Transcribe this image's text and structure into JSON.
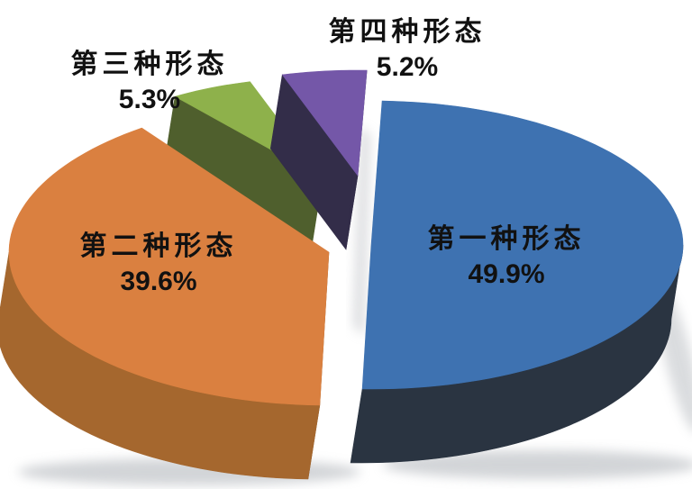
{
  "chart_data": {
    "type": "pie",
    "effect": "3d-exploded",
    "title": "",
    "background": "#FFFFFF",
    "categories": [
      "第一种形态",
      "第二种形态",
      "第三种形态",
      "第四种形态"
    ],
    "values": [
      49.9,
      39.6,
      5.3,
      5.2
    ],
    "start_angle_deg": 2,
    "legend": "none",
    "labels": [
      {
        "name": "第一种形态",
        "pct": "49.9%"
      },
      {
        "name": "第二种形态",
        "pct": "39.6%"
      },
      {
        "name": "第三种形态",
        "pct": "5.3%"
      },
      {
        "name": "第四种形态",
        "pct": "5.2%"
      }
    ],
    "label_color": "#111111",
    "slice_colors": [
      {
        "top": "#3E72B1",
        "side": "#2A3441",
        "cut": "#2A3441"
      },
      {
        "top": "#DA8040",
        "side": "#A5672E",
        "cut": "#7A5129"
      },
      {
        "top": "#8EB14B",
        "side": "#4F5F2D",
        "cut": "#4F5F2D"
      },
      {
        "top": "#7457A8",
        "side": "#342E4A",
        "cut": "#332D49"
      }
    ],
    "shadow_color": "#AEB2B8"
  }
}
